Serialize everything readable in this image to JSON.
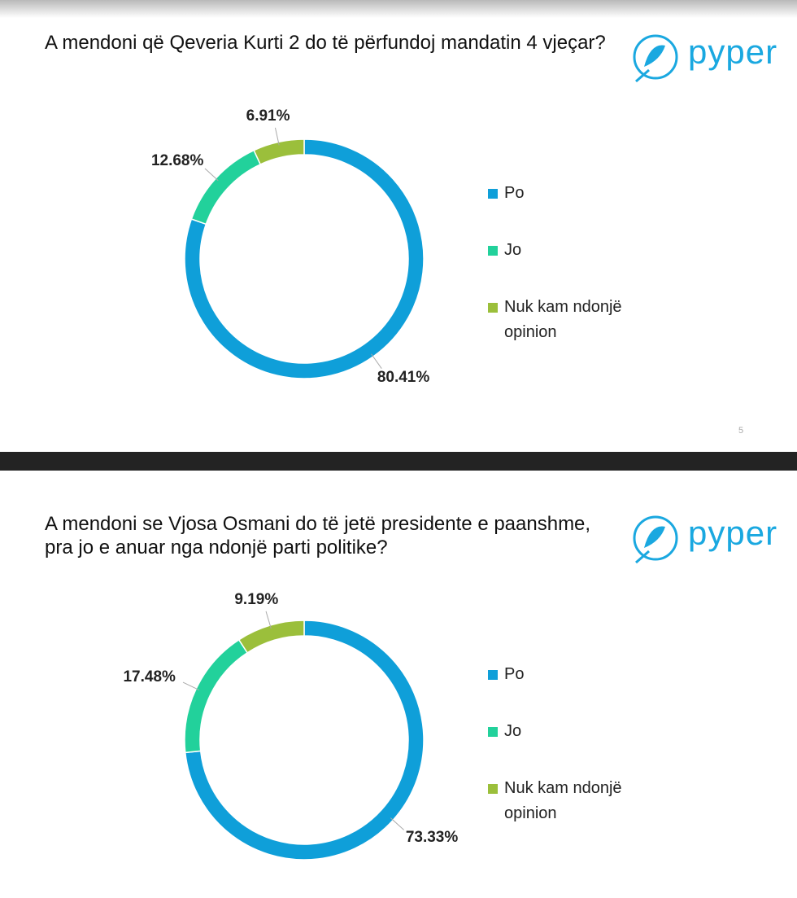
{
  "logo": "pyper",
  "page_number": "5",
  "chart_data": [
    {
      "type": "donut",
      "title": "A mendoni që Qeveria Kurti 2 do të përfundoj mandatin 4 vjeçar?",
      "categories": [
        "Po",
        "Jo",
        "Nuk kam ndonjë opinion"
      ],
      "values": [
        80.41,
        12.68,
        6.91
      ],
      "value_labels": [
        "80.41%",
        "12.68%",
        "6.91%"
      ],
      "colors": [
        "#0f9fd9",
        "#22d19b",
        "#9bbf3b"
      ],
      "legend": "right"
    },
    {
      "type": "donut",
      "title": "A mendoni se Vjosa Osmani do të jetë presidente e paanshme, pra jo e anuar nga ndonjë parti politike?",
      "categories": [
        "Po",
        "Jo",
        "Nuk kam ndonjë opinion"
      ],
      "values": [
        73.33,
        17.48,
        9.19
      ],
      "value_labels": [
        "73.33%",
        "17.48%",
        "9.19%"
      ],
      "colors": [
        "#0f9fd9",
        "#22d19b",
        "#9bbf3b"
      ],
      "legend": "right"
    }
  ]
}
